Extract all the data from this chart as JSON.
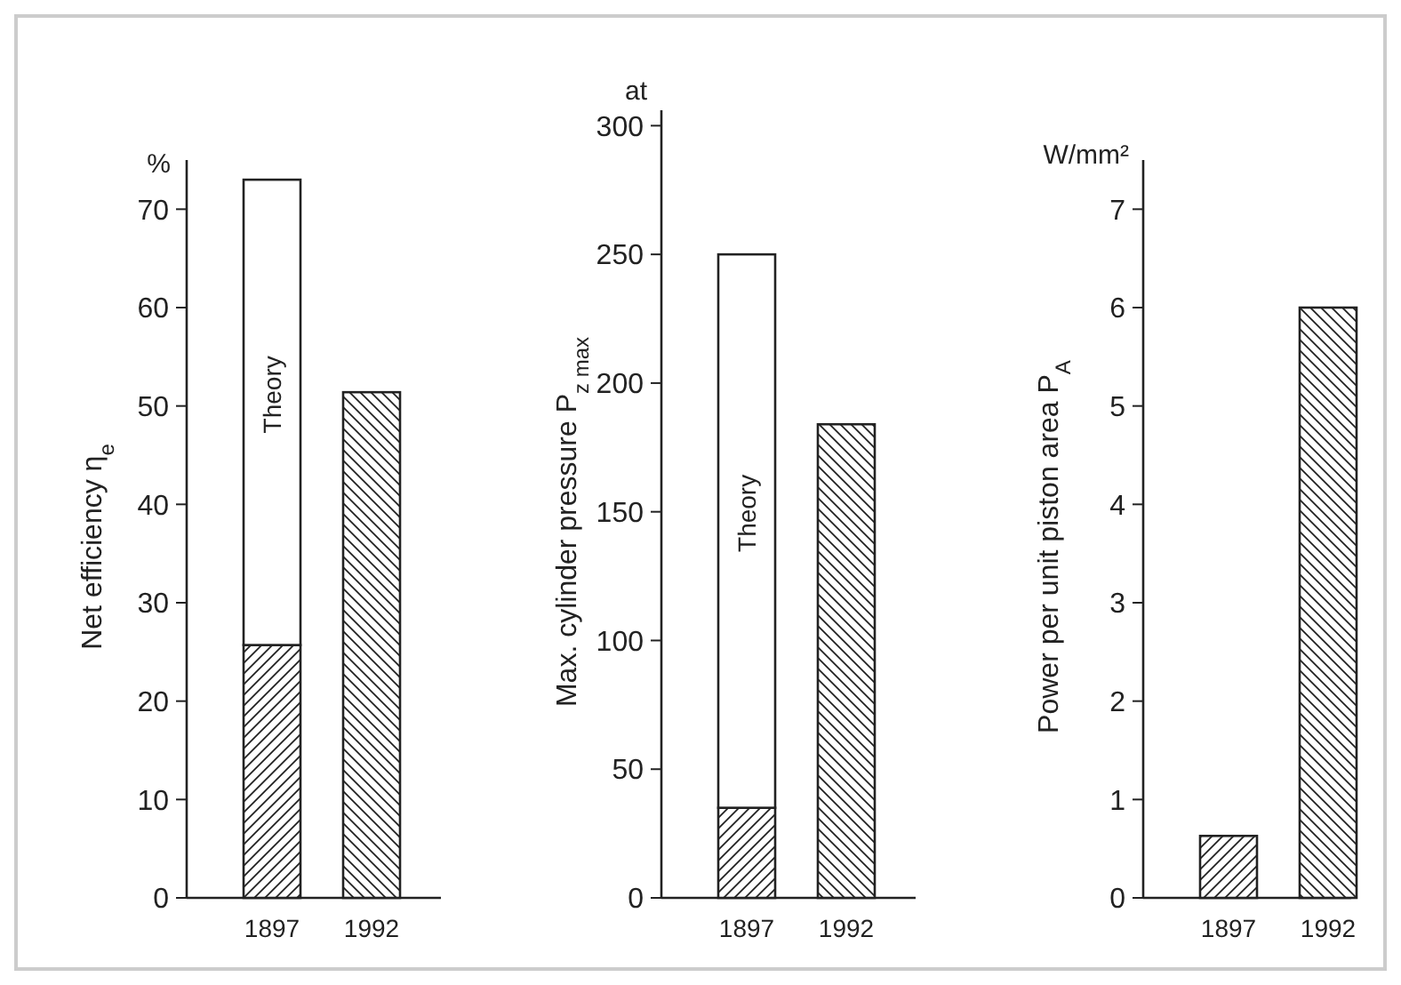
{
  "chart_data": [
    {
      "type": "bar",
      "stacked": true,
      "categories": [
        "1897",
        "1992"
      ],
      "ylabel": "Net efficiency η$_{e}$",
      "annotations": [
        "%"
      ],
      "ylim": [
        0,
        75
      ],
      "yticks": [
        0,
        10,
        20,
        30,
        40,
        50,
        60,
        70
      ],
      "grid": false,
      "series": [
        {
          "color": "#222222",
          "values": [
            25.7,
            51.4
          ]
        },
        {
          "name": "Theory",
          "color": "#ffffff",
          "values": [
            47.3,
            null
          ]
        }
      ]
    },
    {
      "type": "bar",
      "stacked": true,
      "categories": [
        "1897",
        "1992"
      ],
      "ylabel": "Max. cylinder pressure P$_{z max}$",
      "annotations": [
        "at"
      ],
      "ylim": [
        0,
        306
      ],
      "yticks": [
        0,
        50,
        100,
        150,
        200,
        250,
        300
      ],
      "grid": false,
      "series": [
        {
          "color": "#222222",
          "values": [
            35,
            184
          ]
        },
        {
          "name": "Theory",
          "color": "#ffffff",
          "values": [
            215,
            null
          ]
        }
      ]
    },
    {
      "type": "bar",
      "categories": [
        "1897",
        "1992"
      ],
      "ylabel": "Power per unit piston area P$_{A}$",
      "annotations": [
        "W/mm²"
      ],
      "ylim": [
        0,
        7.5
      ],
      "yticks": [
        0,
        1,
        2,
        3,
        4,
        5,
        6,
        7
      ],
      "grid": false,
      "series": [
        {
          "color": "#222222",
          "values": [
            0.63,
            6.0
          ]
        }
      ]
    }
  ]
}
